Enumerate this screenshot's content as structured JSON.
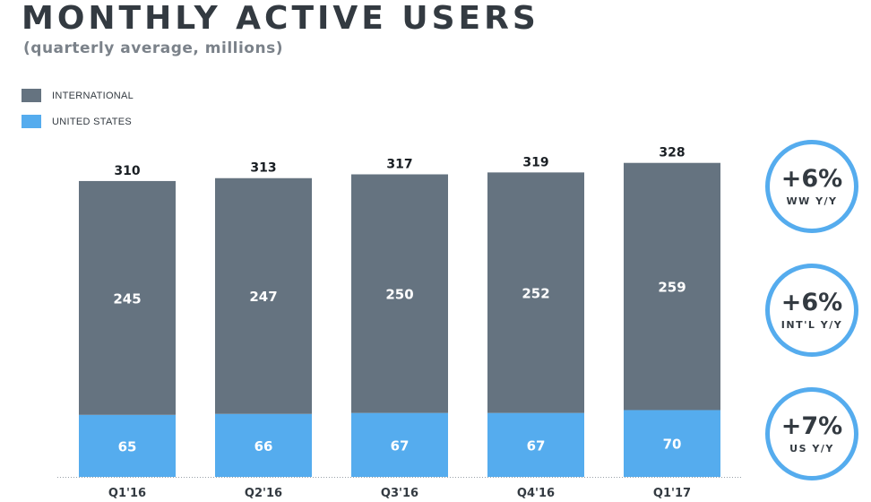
{
  "header": {
    "title": "MONTHLY ACTIVE USERS",
    "subtitle": "(quarterly average, millions)"
  },
  "legend": [
    {
      "label": "INTERNATIONAL",
      "color": "#657380"
    },
    {
      "label": "UNITED STATES",
      "color": "#55acee"
    }
  ],
  "chart_data": {
    "type": "bar",
    "stacked": true,
    "categories": [
      "Q1'16",
      "Q2'16",
      "Q3'16",
      "Q4'16",
      "Q1'17"
    ],
    "series": [
      {
        "name": "UNITED STATES",
        "color": "#55acee",
        "values": [
          65,
          66,
          67,
          67,
          70
        ]
      },
      {
        "name": "INTERNATIONAL",
        "color": "#657380",
        "values": [
          245,
          247,
          250,
          252,
          259
        ]
      }
    ],
    "totals": [
      310,
      313,
      317,
      319,
      328
    ],
    "ylim": [
      0,
      340
    ],
    "grid": false,
    "legend_position": "top-left"
  },
  "callouts": [
    {
      "value": "+6%",
      "label": "WW Y/Y"
    },
    {
      "value": "+6%",
      "label": "INT'L Y/Y"
    },
    {
      "value": "+7%",
      "label": "US Y/Y"
    }
  ]
}
